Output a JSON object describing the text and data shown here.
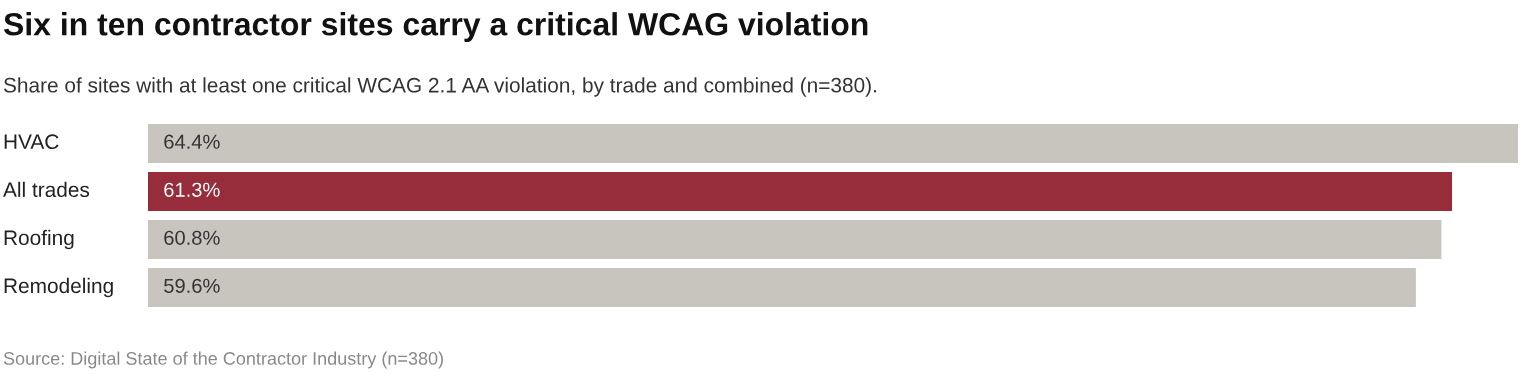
{
  "chart_data": {
    "type": "bar",
    "orientation": "horizontal",
    "title": "Six in ten contractor sites carry a critical WCAG violation",
    "subtitle": "Share of sites with at least one critical WCAG 2.1 AA violation, by trade and combined (n=380).",
    "categories": [
      "HVAC",
      "All trades",
      "Roofing",
      "Remodeling"
    ],
    "values": [
      64.4,
      61.3,
      60.8,
      59.6
    ],
    "colors": [
      "#c8c5be",
      "#972d3a",
      "#c8c5be",
      "#c8c5be"
    ],
    "value_labels": [
      "64.4%",
      "61.3%",
      "60.8%",
      "59.6%"
    ],
    "annotations": [
      "Source: Digital State of the Contractor Industry (n=380)"
    ]
  }
}
